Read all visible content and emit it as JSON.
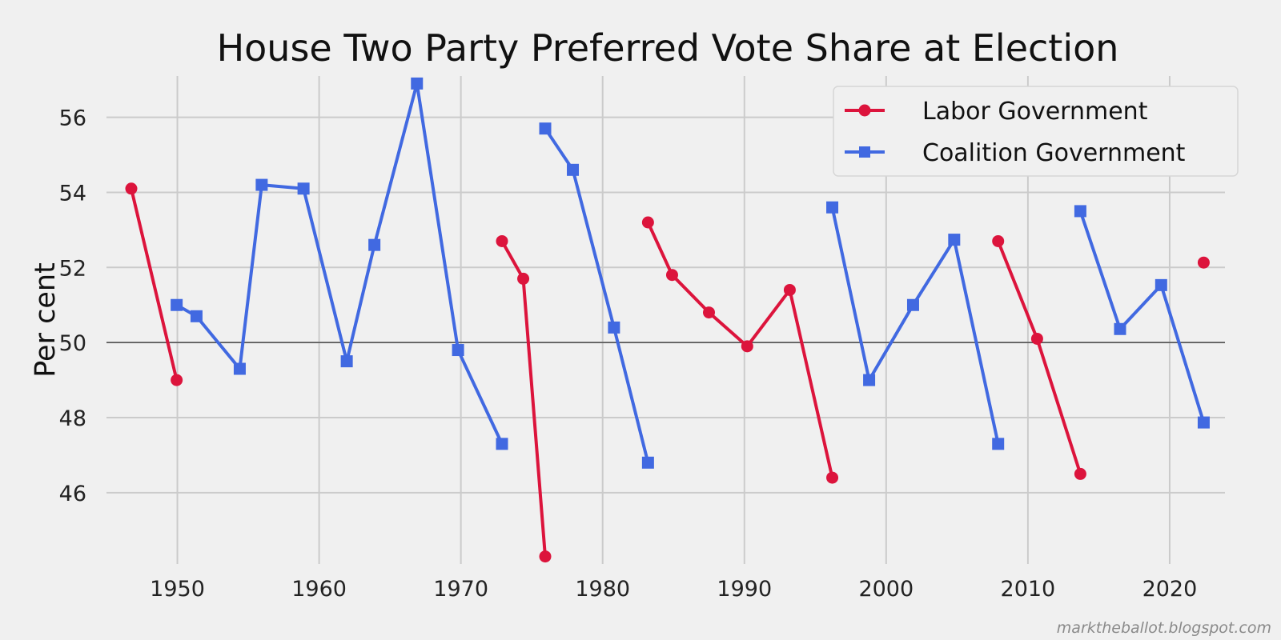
{
  "colors": {
    "background": "#f0f0f0",
    "labor": "#dc143c",
    "coalition": "#4169e1",
    "grid": "#cbcbcb",
    "reference_line": "#555555"
  },
  "chart_data": {
    "type": "line",
    "title": "House Two Party Preferred Vote Share at Election",
    "xlabel": "",
    "ylabel": "Per cent",
    "xlim": [
      1945.0,
      2023.9
    ],
    "ylim": [
      44.1,
      57.1
    ],
    "x_ticks": [
      1950,
      1960,
      1970,
      1980,
      1990,
      2000,
      2010,
      2020
    ],
    "y_ticks": [
      46,
      48,
      50,
      52,
      54,
      56
    ],
    "grid": true,
    "legend_position": "top-right",
    "reference_line": {
      "y": 50
    },
    "series": [
      {
        "name": "Labor Government",
        "color": "#dc143c",
        "marker": "circle",
        "segments": [
          [
            [
              1946.75,
              54.1
            ],
            [
              1949.95,
              49.0
            ]
          ],
          [
            [
              1972.9,
              52.7
            ],
            [
              1974.4,
              51.7
            ],
            [
              1975.95,
              44.3
            ]
          ],
          [
            [
              1983.2,
              53.2
            ],
            [
              1984.9,
              51.8
            ],
            [
              1987.5,
              50.8
            ],
            [
              1990.2,
              49.9
            ],
            [
              1993.2,
              51.4
            ],
            [
              1996.2,
              46.4
            ]
          ],
          [
            [
              2007.9,
              52.7
            ],
            [
              2010.65,
              50.1
            ],
            [
              2013.7,
              46.5
            ]
          ],
          [
            [
              2022.4,
              52.13
            ]
          ]
        ]
      },
      {
        "name": "Coalition Government",
        "color": "#4169e1",
        "marker": "square",
        "segments": [
          [
            [
              1949.95,
              51.0
            ],
            [
              1951.35,
              50.7
            ],
            [
              1954.4,
              49.3
            ],
            [
              1955.95,
              54.2
            ],
            [
              1958.9,
              54.1
            ],
            [
              1961.95,
              49.5
            ],
            [
              1963.9,
              52.6
            ],
            [
              1966.9,
              56.9
            ],
            [
              1969.8,
              49.8
            ],
            [
              1972.9,
              47.3
            ]
          ],
          [
            [
              1975.95,
              55.7
            ],
            [
              1977.9,
              54.6
            ],
            [
              1980.8,
              50.4
            ],
            [
              1983.2,
              46.8
            ]
          ],
          [
            [
              1996.2,
              53.6
            ],
            [
              1998.8,
              49.0
            ],
            [
              2001.9,
              51.0
            ],
            [
              2004.8,
              52.74
            ],
            [
              2007.9,
              47.3
            ]
          ],
          [
            [
              2013.7,
              53.5
            ],
            [
              2016.5,
              50.36
            ],
            [
              2019.4,
              51.53
            ],
            [
              2022.4,
              47.87
            ]
          ]
        ]
      }
    ]
  },
  "footer": {
    "credit": "marktheballot.blogspot.com"
  }
}
